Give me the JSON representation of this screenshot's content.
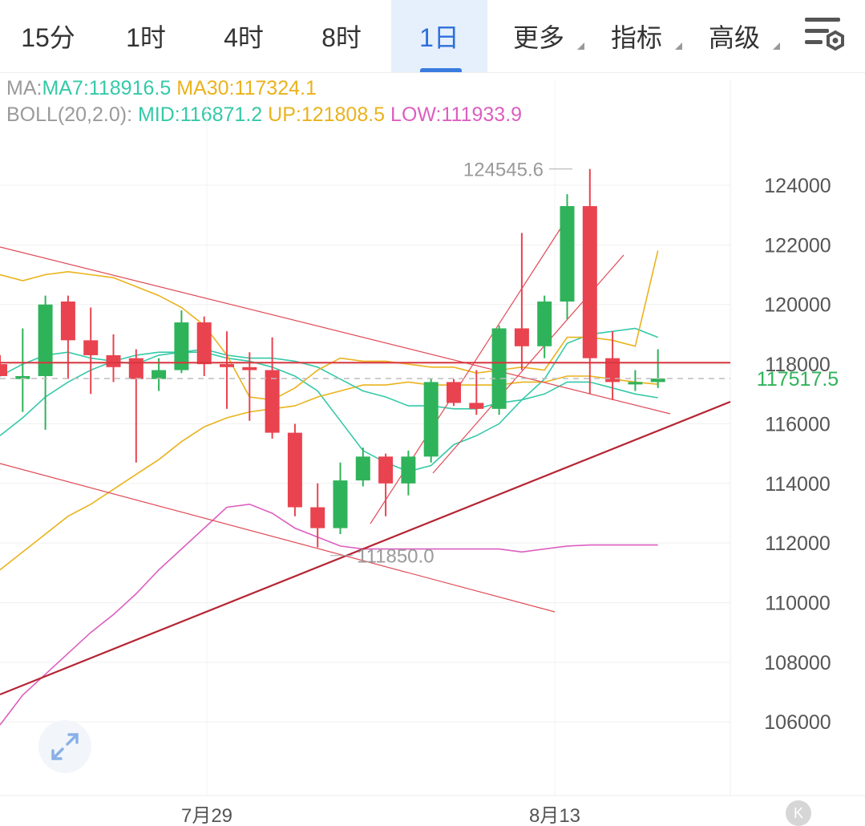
{
  "tabs": [
    {
      "label": "15分",
      "active": false,
      "dropdown": false
    },
    {
      "label": "1时",
      "active": false,
      "dropdown": false
    },
    {
      "label": "4时",
      "active": false,
      "dropdown": false
    },
    {
      "label": "8时",
      "active": false,
      "dropdown": false
    },
    {
      "label": "1日",
      "active": true,
      "dropdown": false
    },
    {
      "label": "更多",
      "active": false,
      "dropdown": true
    },
    {
      "label": "指标",
      "active": false,
      "dropdown": true
    },
    {
      "label": "高级",
      "active": false,
      "dropdown": true
    }
  ],
  "settings_icon": "chart-settings-icon",
  "legend": {
    "ma": {
      "prefix": "MA:",
      "ma7": "MA7:118916.5",
      "ma30": "MA30:117324.1"
    },
    "boll": {
      "prefix": "BOLL(20,2.0):",
      "mid": "MID:116871.2",
      "up": "UP:121808.5",
      "low": "LOW:111933.9"
    }
  },
  "colors": {
    "up": "#2fb35a",
    "down": "#e9434f",
    "ma7": "#35c9a8",
    "ma30": "#eab21c",
    "boll_low": "#dc5fc0",
    "active_tab": "#2d6fdc",
    "price_line": "#d9363e",
    "trend_line": "#b52432"
  },
  "chart_data": {
    "type": "candlestick",
    "y_ticks": [
      124000,
      122000,
      120000,
      118000,
      116000,
      114000,
      112000,
      110000,
      108000,
      106000
    ],
    "x_labels": [
      "7月29",
      "8月13"
    ],
    "last_price": "117517.5",
    "high_marker": "124545.6",
    "low_marker": "111850.0",
    "candles": [
      {
        "o": 118000,
        "h": 118300,
        "l": 117600,
        "c": 117600
      },
      {
        "o": 117500,
        "h": 119200,
        "l": 116400,
        "c": 117600
      },
      {
        "o": 117600,
        "h": 120300,
        "l": 115800,
        "c": 120000
      },
      {
        "o": 120100,
        "h": 120300,
        "l": 117500,
        "c": 118800
      },
      {
        "o": 118800,
        "h": 119900,
        "l": 117000,
        "c": 118300
      },
      {
        "o": 118300,
        "h": 119000,
        "l": 117400,
        "c": 117900
      },
      {
        "o": 118200,
        "h": 118500,
        "l": 114700,
        "c": 117500
      },
      {
        "o": 117500,
        "h": 118200,
        "l": 117100,
        "c": 117800
      },
      {
        "o": 117800,
        "h": 119800,
        "l": 117700,
        "c": 119400
      },
      {
        "o": 119400,
        "h": 119600,
        "l": 117600,
        "c": 118000
      },
      {
        "o": 118000,
        "h": 119100,
        "l": 116500,
        "c": 117900
      },
      {
        "o": 117900,
        "h": 118400,
        "l": 116100,
        "c": 117800
      },
      {
        "o": 117800,
        "h": 118900,
        "l": 115500,
        "c": 115700
      },
      {
        "o": 115700,
        "h": 116000,
        "l": 112900,
        "c": 113200
      },
      {
        "o": 113200,
        "h": 114000,
        "l": 111850,
        "c": 112500
      },
      {
        "o": 112500,
        "h": 114700,
        "l": 112300,
        "c": 114100
      },
      {
        "o": 114100,
        "h": 115200,
        "l": 113900,
        "c": 114900
      },
      {
        "o": 114900,
        "h": 115000,
        "l": 112900,
        "c": 114000
      },
      {
        "o": 114000,
        "h": 115100,
        "l": 113600,
        "c": 114900
      },
      {
        "o": 114900,
        "h": 117500,
        "l": 114700,
        "c": 117400
      },
      {
        "o": 117400,
        "h": 117500,
        "l": 116600,
        "c": 116700
      },
      {
        "o": 116700,
        "h": 117800,
        "l": 116300,
        "c": 116500
      },
      {
        "o": 116500,
        "h": 119300,
        "l": 116300,
        "c": 119200
      },
      {
        "o": 119200,
        "h": 122400,
        "l": 117800,
        "c": 118600
      },
      {
        "o": 118600,
        "h": 120300,
        "l": 118200,
        "c": 120100
      },
      {
        "o": 120100,
        "h": 123700,
        "l": 119500,
        "c": 123300
      },
      {
        "o": 123300,
        "h": 124545.6,
        "l": 117000,
        "c": 118200
      },
      {
        "o": 118200,
        "h": 119100,
        "l": 116800,
        "c": 117400
      },
      {
        "o": 117400,
        "h": 117800,
        "l": 117100,
        "c": 117400
      },
      {
        "o": 117400,
        "h": 118500,
        "l": 117200,
        "c": 117517.5
      }
    ],
    "series": [
      {
        "name": "MA7",
        "values": [
          117600,
          118000,
          118300,
          118400,
          118200,
          118100,
          118000,
          118300,
          118400,
          118400,
          118200,
          118100,
          117900,
          117600,
          117100,
          116100,
          115100,
          114700,
          114400,
          114600,
          115300,
          115600,
          116000,
          116800,
          117500,
          118700,
          119000,
          119100,
          119200,
          118900
        ]
      },
      {
        "name": "MA30",
        "values": [
          111100,
          111700,
          112300,
          112900,
          113300,
          113800,
          114300,
          114800,
          115400,
          115900,
          116200,
          116400,
          116500,
          116600,
          116900,
          117100,
          117300,
          117300,
          117400,
          117300,
          117300,
          117300,
          117300,
          117400,
          117400,
          117600,
          117600,
          117500,
          117400,
          117324.1
        ]
      },
      {
        "name": "MID",
        "values": [
          115600,
          116200,
          116900,
          117400,
          117800,
          118100,
          118300,
          118400,
          118400,
          118500,
          118300,
          118200,
          118200,
          118100,
          117900,
          117500,
          117100,
          116900,
          116600,
          116600,
          116500,
          116500,
          116700,
          116800,
          117000,
          117400,
          117400,
          117200,
          117000,
          116871.2
        ]
      },
      {
        "name": "UP",
        "values": [
          121000,
          120800,
          121000,
          121100,
          121000,
          120900,
          120600,
          120300,
          119900,
          119300,
          118300,
          116900,
          116800,
          117200,
          117800,
          118200,
          118100,
          118100,
          118000,
          117900,
          117900,
          117700,
          117800,
          117900,
          117800,
          118900,
          118900,
          118800,
          118600,
          121808.5
        ]
      },
      {
        "name": "LOW",
        "values": [
          105900,
          106900,
          107600,
          108300,
          109000,
          109600,
          110300,
          111100,
          111800,
          112500,
          113200,
          113300,
          113000,
          112500,
          112200,
          111900,
          111800,
          111800,
          111800,
          111800,
          111800,
          111800,
          111800,
          111700,
          111800,
          111900,
          111933.9,
          111933.9,
          111933.9,
          111933.9
        ]
      }
    ]
  }
}
